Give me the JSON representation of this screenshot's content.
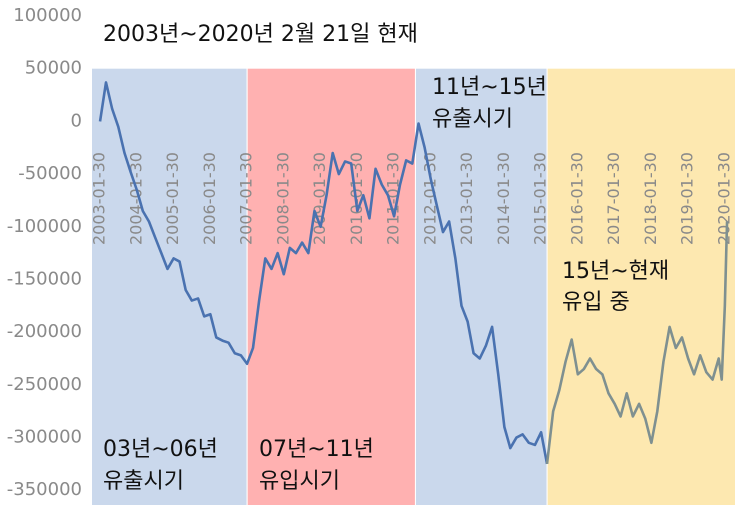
{
  "chart_data": {
    "type": "line",
    "title": "2003년~2020년 2월 21일 현재",
    "x": [
      "2003-01-30",
      "2003-03-30",
      "2003-05-30",
      "2003-07-30",
      "2003-09-30",
      "2003-11-30",
      "2004-01-30",
      "2004-03-30",
      "2004-05-30",
      "2004-07-30",
      "2004-09-30",
      "2004-11-30",
      "2005-01-30",
      "2005-03-30",
      "2005-05-30",
      "2005-07-30",
      "2005-09-30",
      "2005-11-30",
      "2006-01-30",
      "2006-03-30",
      "2006-05-30",
      "2006-07-30",
      "2006-09-30",
      "2006-11-30",
      "2007-01-30",
      "2007-03-30",
      "2007-05-30",
      "2007-07-30",
      "2007-09-30",
      "2007-11-30",
      "2008-01-30",
      "2008-03-30",
      "2008-05-30",
      "2008-07-30",
      "2008-09-30",
      "2008-11-30",
      "2009-01-30",
      "2009-03-30",
      "2009-05-30",
      "2009-07-30",
      "2009-09-30",
      "2009-11-30",
      "2010-01-30",
      "2010-03-30",
      "2010-05-30",
      "2010-07-30",
      "2010-09-30",
      "2010-11-30",
      "2011-01-30",
      "2011-03-30",
      "2011-05-30",
      "2011-07-30",
      "2011-09-30",
      "2011-11-30",
      "2012-01-30",
      "2012-03-30",
      "2012-05-30",
      "2012-07-30",
      "2012-09-30",
      "2012-11-30",
      "2013-01-30",
      "2013-03-30",
      "2013-05-30",
      "2013-07-30",
      "2013-09-30",
      "2013-11-30",
      "2014-01-30",
      "2014-03-30",
      "2014-05-30",
      "2014-07-30",
      "2014-09-30",
      "2014-11-30",
      "2015-01-30",
      "2015-03-30",
      "2015-05-30",
      "2015-07-30",
      "2015-09-30",
      "2015-11-30",
      "2016-01-30",
      "2016-03-30",
      "2016-05-30",
      "2016-07-30",
      "2016-09-30",
      "2016-11-30",
      "2017-01-30",
      "2017-03-30",
      "2017-05-30",
      "2017-07-30",
      "2017-09-30",
      "2017-11-30",
      "2018-01-30",
      "2018-03-30",
      "2018-05-30",
      "2018-07-30",
      "2018-09-30",
      "2018-11-30",
      "2019-01-30",
      "2019-03-30",
      "2019-05-30",
      "2019-07-30",
      "2019-09-30",
      "2019-11-30",
      "2019-12-30",
      "2020-01-30",
      "2020-02-21"
    ],
    "series": [
      {
        "color": "#4a72b0",
        "values": [
          0,
          37000,
          12000,
          -5000,
          -30000,
          -48000,
          -65000,
          -85000,
          -95000,
          -110000,
          -125000,
          -140000,
          -130000,
          -133000,
          -160000,
          -170000,
          -168000,
          -185000,
          -183000,
          -205000,
          -208000,
          -210000,
          -220000,
          -222000,
          -230000,
          -215000,
          -170000,
          -130000,
          -140000,
          -125000,
          -145000,
          -120000,
          -125000,
          -115000,
          -125000,
          -85000,
          -100000,
          -70000,
          -30000,
          -50000,
          -38000,
          -40000,
          -85000,
          -70000,
          -92000,
          -45000,
          -60000,
          -70000,
          -90000,
          -60000,
          -37000,
          -40000,
          -2000,
          -25000,
          -55000,
          -80000,
          -105000,
          -95000,
          -130000,
          -175000,
          -190000,
          -220000,
          -225000,
          -213000,
          -195000,
          -240000,
          -290000,
          -310000,
          -300000,
          -297000,
          -305000,
          -307000,
          -295000,
          -325000,
          null,
          null,
          null,
          null,
          null,
          null,
          null,
          null,
          null,
          null,
          null,
          null,
          null,
          null,
          null,
          null,
          null,
          null,
          null,
          null,
          null,
          null,
          null,
          null,
          null,
          null,
          null,
          null,
          null,
          null,
          null
        ]
      },
      {
        "color": "#7f9090",
        "values": [
          null,
          null,
          null,
          null,
          null,
          null,
          null,
          null,
          null,
          null,
          null,
          null,
          null,
          null,
          null,
          null,
          null,
          null,
          null,
          null,
          null,
          null,
          null,
          null,
          null,
          null,
          null,
          null,
          null,
          null,
          null,
          null,
          null,
          null,
          null,
          null,
          null,
          null,
          null,
          null,
          null,
          null,
          null,
          null,
          null,
          null,
          null,
          null,
          null,
          null,
          null,
          null,
          null,
          null,
          null,
          null,
          null,
          null,
          null,
          null,
          null,
          null,
          null,
          null,
          null,
          null,
          null,
          null,
          null,
          null,
          null,
          null,
          null,
          -325000,
          -275000,
          -255000,
          -228000,
          -207000,
          -240000,
          -235000,
          -225000,
          -235000,
          -240000,
          -258000,
          -268000,
          -280000,
          -258000,
          -280000,
          -268000,
          -282000,
          -305000,
          -275000,
          -228000,
          -195000,
          -215000,
          -205000,
          -225000,
          -240000,
          -222000,
          -238000,
          -245000,
          -225000,
          -245000,
          -175000,
          -95000
        ]
      }
    ],
    "xlim": [
      "2002-11-11",
      "2020-05-10"
    ],
    "xticks": [
      "2003-01-30",
      "2004-01-30",
      "2005-01-30",
      "2006-01-30",
      "2007-01-30",
      "2008-01-30",
      "2009-01-30",
      "2010-01-30",
      "2011-01-30",
      "2012-01-30",
      "2013-01-30",
      "2014-01-30",
      "2015-01-30",
      "2016-01-30",
      "2017-01-30",
      "2018-01-30",
      "2019-01-30",
      "2020-01-30"
    ],
    "ylim": [
      -364000,
      100000
    ],
    "yticks": [
      100000,
      50000,
      0,
      -50000,
      -100000,
      -150000,
      -200000,
      -250000,
      -300000,
      -350000
    ],
    "grid": false,
    "regions": [
      {
        "start": "2002-11-11",
        "end": "2007-01-25",
        "color": "#cad8ec",
        "label": [
          "03년~06년",
          "유출시기"
        ]
      },
      {
        "start": "2007-02-05",
        "end": "2011-08-25",
        "color": "#ffb1b1",
        "label": [
          "07년~11년",
          "유입시기"
        ]
      },
      {
        "start": "2011-09-05",
        "end": "2015-03-25",
        "color": "#cad8ec",
        "label": [
          "11년~15년",
          "유출시기"
        ]
      },
      {
        "start": "2015-04-05",
        "end": "2020-05-10",
        "color": "#fde8b0",
        "label": [
          "15년~현재",
          "유입 중"
        ]
      }
    ]
  }
}
